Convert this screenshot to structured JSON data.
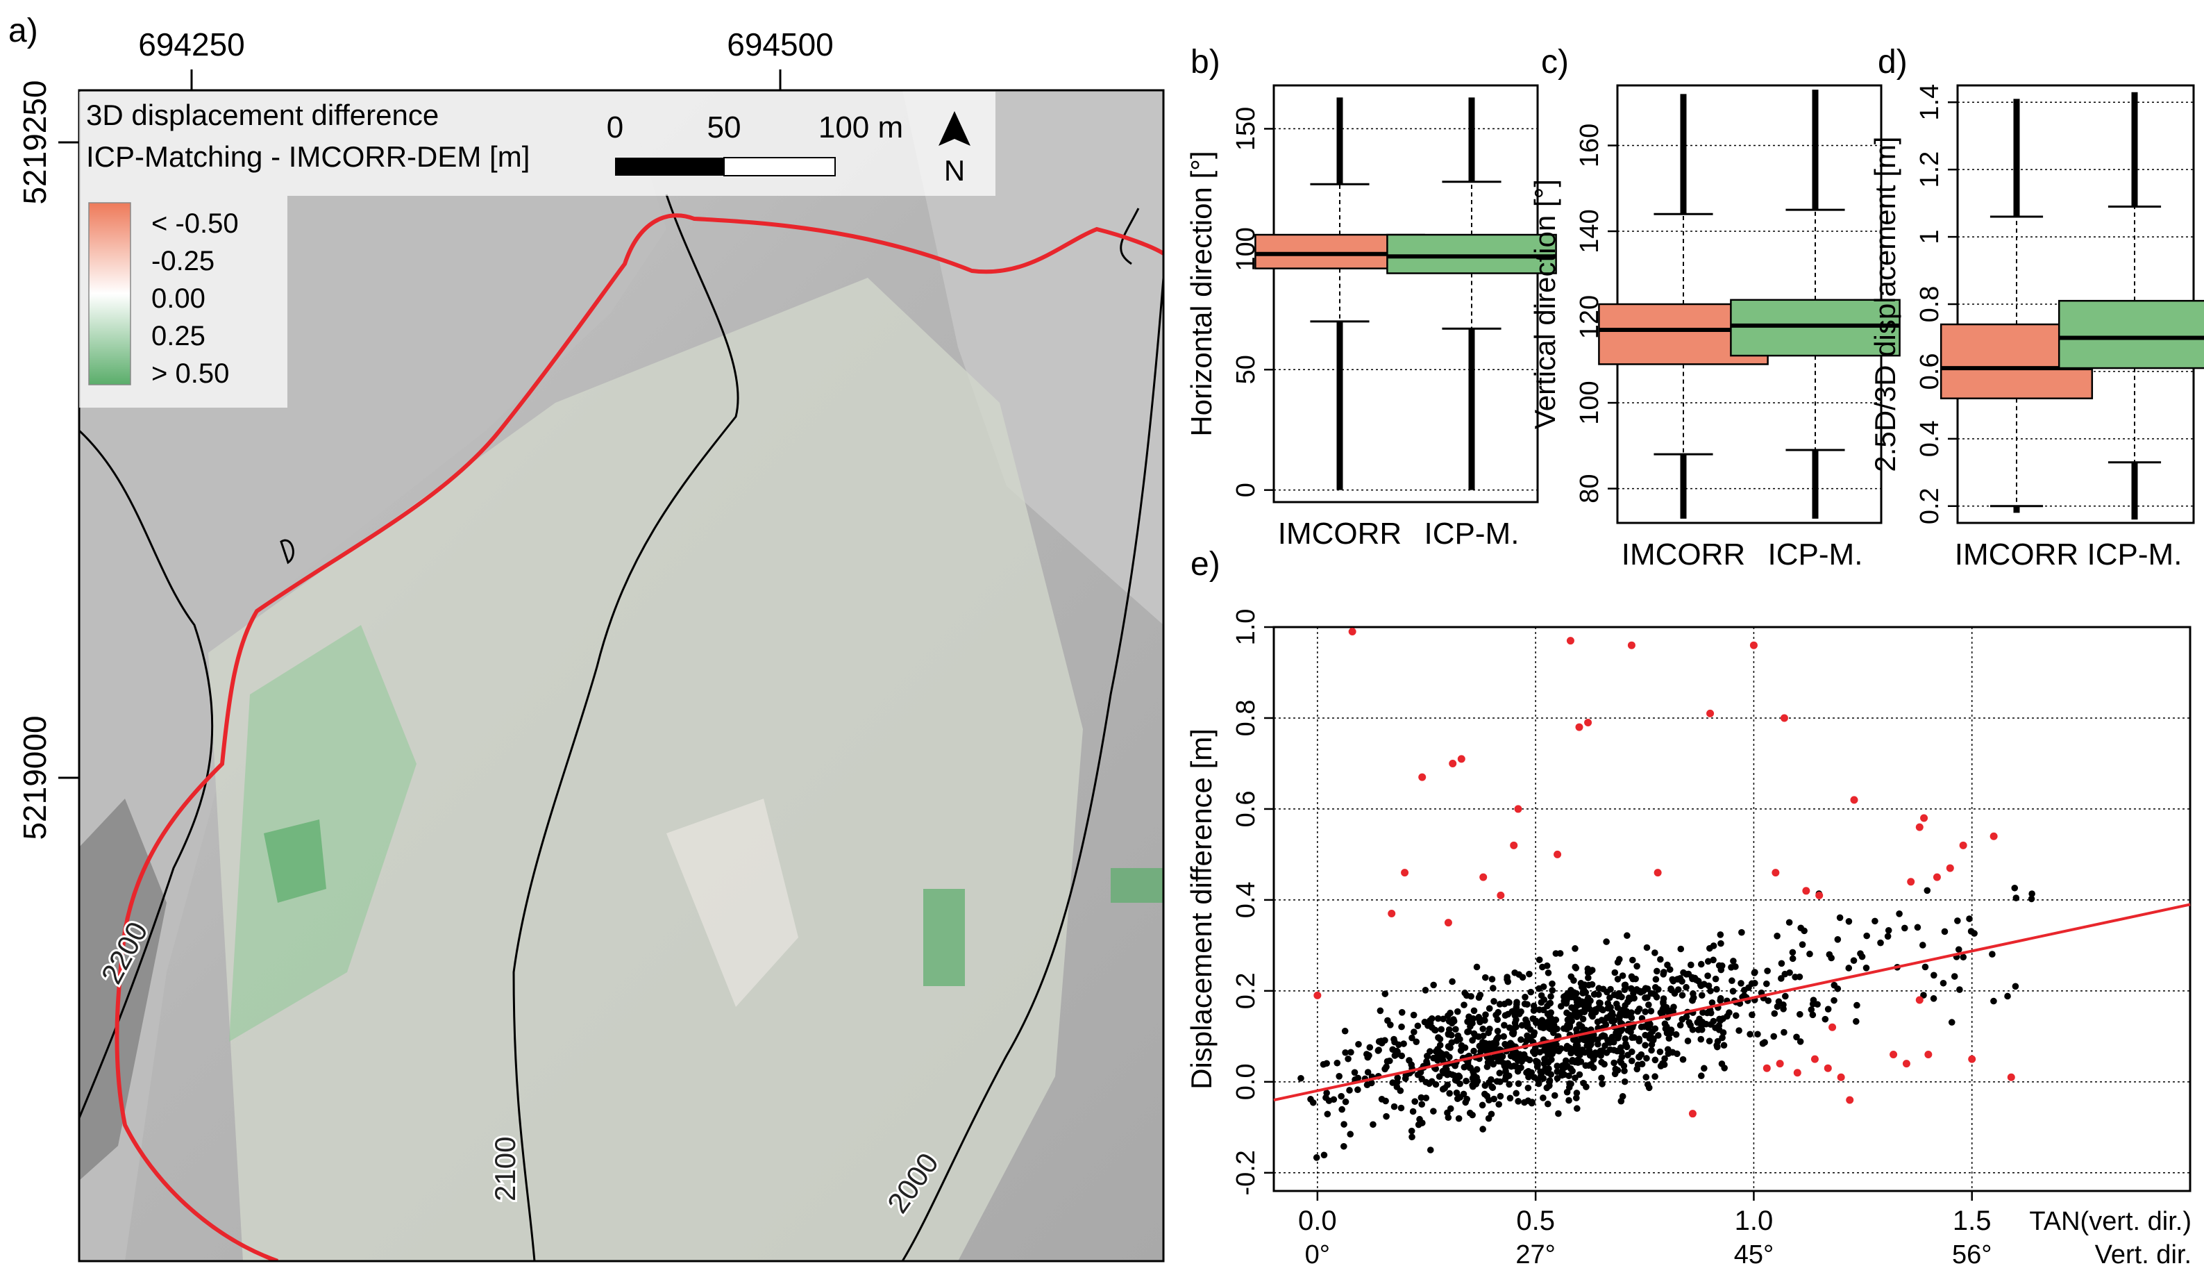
{
  "panel_labels": {
    "a": "a)",
    "b": "b)",
    "c": "c)",
    "d": "d)",
    "e": "e)"
  },
  "map": {
    "x_ticks": [
      "694250",
      "694500"
    ],
    "y_ticks": [
      "5219250",
      "5219000"
    ],
    "legend_title_1": "3D displacement difference",
    "legend_title_2": "ICP-Matching - IMCORR-DEM [m]",
    "legend_items": [
      "< -0.50",
      "-0.25",
      "0.00",
      "0.25",
      "> 0.50"
    ],
    "scalebar_labels": [
      "0",
      "50",
      "100 m"
    ],
    "north_label": "N",
    "contour_labels": [
      "2200",
      "2100",
      "2000"
    ],
    "colors": {
      "negative": "#ee7a5a",
      "neutral": "#ffffff",
      "positive": "#5aad6a",
      "boundary": "#e8262c"
    }
  },
  "chart_data": [
    {
      "type": "box",
      "panel": "b",
      "ylabel": "Horizontal direction [°]",
      "categories": [
        "IMCORR",
        "ICP-M."
      ],
      "colors": [
        "#ee8a6f",
        "#7cbf80"
      ],
      "ylim": [
        -5,
        168
      ],
      "yticks": [
        0,
        50,
        100,
        150
      ],
      "boxes": [
        {
          "whisker_low": 70,
          "q1": 92,
          "median": 98,
          "q3": 106,
          "whisker_high": 127,
          "out_low": 0,
          "out_high": 163
        },
        {
          "whisker_low": 67,
          "q1": 90,
          "median": 97,
          "q3": 106,
          "whisker_high": 128,
          "out_low": 0,
          "out_high": 163
        }
      ]
    },
    {
      "type": "box",
      "panel": "c",
      "ylabel": "Vertical direction [°]",
      "categories": [
        "IMCORR",
        "ICP-M."
      ],
      "colors": [
        "#ee8a6f",
        "#7cbf80"
      ],
      "ylim": [
        72,
        174
      ],
      "yticks": [
        80,
        100,
        120,
        140,
        160
      ],
      "boxes": [
        {
          "whisker_low": 88,
          "q1": 109,
          "median": 117,
          "q3": 123,
          "whisker_high": 144,
          "out_low": 73,
          "out_high": 172
        },
        {
          "whisker_low": 89,
          "q1": 111,
          "median": 118,
          "q3": 124,
          "whisker_high": 145,
          "out_low": 73,
          "out_high": 173
        }
      ]
    },
    {
      "type": "box",
      "panel": "d",
      "ylabel": "2.5D/3D displacement [m]",
      "categories": [
        "IMCORR",
        "ICP-M."
      ],
      "colors": [
        "#ee8a6f",
        "#7cbf80"
      ],
      "ylim": [
        0.15,
        1.45
      ],
      "yticks": [
        0.2,
        0.4,
        0.6,
        0.8,
        1.0,
        1.2,
        1.4
      ],
      "boxes": [
        {
          "whisker_low": 0.2,
          "q1": 0.52,
          "median": 0.61,
          "q3": 0.74,
          "whisker_high": 1.06,
          "out_low": 0.18,
          "out_high": 1.41
        },
        {
          "whisker_low": 0.33,
          "q1": 0.61,
          "median": 0.7,
          "q3": 0.81,
          "whisker_high": 1.09,
          "out_low": 0.16,
          "out_high": 1.43
        }
      ]
    },
    {
      "type": "scatter",
      "panel": "e",
      "ylabel": "Displacement difference [m]",
      "xlabel_1": "TAN(vert. dir.)",
      "xlabel_2": "Vert. dir.",
      "xlim": [
        -0.1,
        2.0
      ],
      "ylim": [
        -0.24,
        1.0
      ],
      "xticks": [
        0.0,
        0.5,
        1.0,
        1.5
      ],
      "xtick_labels": [
        "0.0",
        "0.5",
        "1.0",
        "1.5"
      ],
      "xtick_labels_2": [
        "0°",
        "27°",
        "45°",
        "56°"
      ],
      "yticks": [
        -0.2,
        0.0,
        0.2,
        0.4,
        0.6,
        0.8,
        1.0
      ],
      "ytick_labels": [
        "-0.2",
        "0.0",
        "0.2",
        "0.4",
        "0.6",
        "0.8",
        "1.0"
      ],
      "trend_line": {
        "x": [
          -0.1,
          2.0
        ],
        "y": [
          -0.04,
          0.39
        ],
        "color": "#e8262c"
      },
      "outlier_color": "#e8262c",
      "point_color": "#000000",
      "outliers": [
        [
          0.0,
          0.19
        ],
        [
          0.08,
          0.99
        ],
        [
          0.17,
          0.37
        ],
        [
          0.2,
          0.46
        ],
        [
          0.24,
          0.67
        ],
        [
          0.31,
          0.7
        ],
        [
          0.33,
          0.71
        ],
        [
          0.3,
          0.35
        ],
        [
          0.38,
          0.45
        ],
        [
          0.45,
          0.52
        ],
        [
          0.46,
          0.6
        ],
        [
          0.58,
          0.97
        ],
        [
          0.6,
          0.78
        ],
        [
          0.62,
          0.79
        ],
        [
          0.72,
          0.96
        ],
        [
          0.55,
          0.5
        ],
        [
          0.9,
          0.81
        ],
        [
          0.78,
          0.46
        ],
        [
          1.0,
          0.96
        ],
        [
          1.07,
          0.8
        ],
        [
          1.05,
          0.46
        ],
        [
          1.12,
          0.42
        ],
        [
          1.15,
          0.41
        ],
        [
          1.23,
          0.62
        ],
        [
          1.38,
          0.56
        ],
        [
          1.39,
          0.58
        ],
        [
          1.45,
          0.47
        ],
        [
          1.48,
          0.52
        ],
        [
          1.55,
          0.54
        ],
        [
          1.36,
          0.44
        ],
        [
          1.42,
          0.45
        ],
        [
          1.03,
          0.03
        ],
        [
          1.06,
          0.04
        ],
        [
          1.1,
          0.02
        ],
        [
          1.14,
          0.05
        ],
        [
          1.17,
          0.03
        ],
        [
          1.2,
          0.01
        ],
        [
          1.22,
          -0.04
        ],
        [
          1.32,
          0.06
        ],
        [
          1.35,
          0.04
        ],
        [
          1.4,
          0.06
        ],
        [
          1.5,
          0.05
        ],
        [
          1.59,
          0.01
        ],
        [
          0.86,
          -0.07
        ],
        [
          0.42,
          0.41
        ],
        [
          1.18,
          0.12
        ],
        [
          1.38,
          0.18
        ]
      ]
    }
  ]
}
